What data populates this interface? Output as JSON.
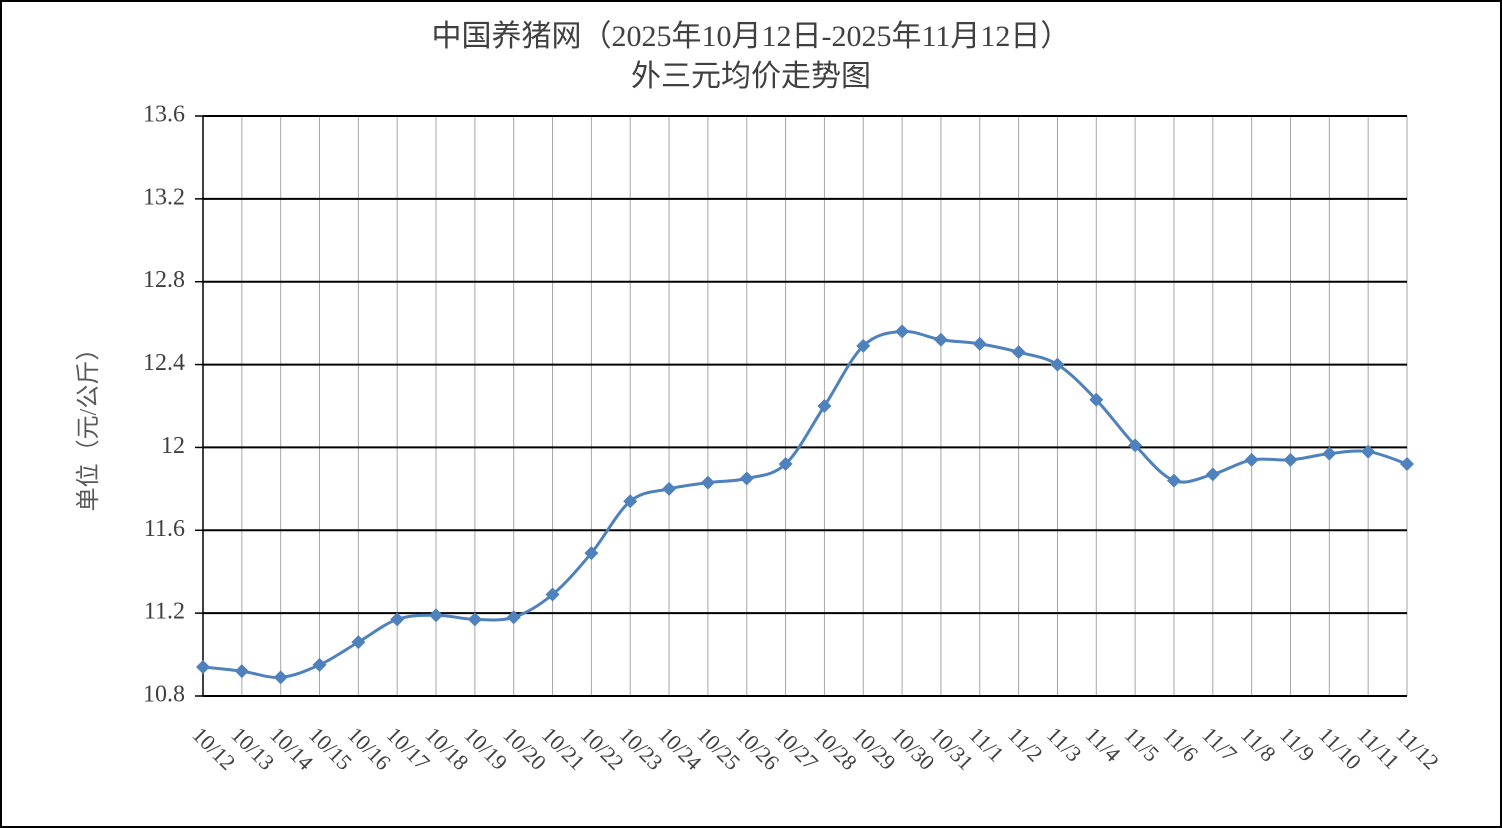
{
  "chart_data": {
    "type": "line",
    "title": "中国养猪网（2025年10月12日-2025年11月12日）",
    "subtitle": "外三元均价走势图",
    "y_label": "单位（元/公斤）",
    "categories": [
      "10/12",
      "10/13",
      "10/14",
      "10/15",
      "10/16",
      "10/17",
      "10/18",
      "10/19",
      "10/20",
      "10/21",
      "10/22",
      "10/23",
      "10/24",
      "10/25",
      "10/26",
      "10/27",
      "10/28",
      "10/29",
      "10/30",
      "10/31",
      "11/1",
      "11/2",
      "11/3",
      "11/4",
      "11/5",
      "11/6",
      "11/7",
      "11/8",
      "11/9",
      "11/10",
      "11/11",
      "11/12"
    ],
    "values": [
      10.94,
      10.92,
      10.89,
      10.95,
      11.06,
      11.17,
      11.19,
      11.17,
      11.18,
      11.29,
      11.49,
      11.74,
      11.8,
      11.83,
      11.85,
      11.92,
      12.2,
      12.49,
      12.56,
      12.52,
      12.5,
      12.46,
      12.4,
      12.23,
      12.01,
      11.84,
      11.87,
      11.94,
      11.94,
      11.97,
      11.98,
      11.92
    ],
    "color": "#4f81bd",
    "ylim": [
      10.8,
      13.6
    ],
    "yticks": [
      10.8,
      11.2,
      11.6,
      12,
      12.4,
      12.8,
      13.2,
      13.6
    ],
    "grid": true
  }
}
